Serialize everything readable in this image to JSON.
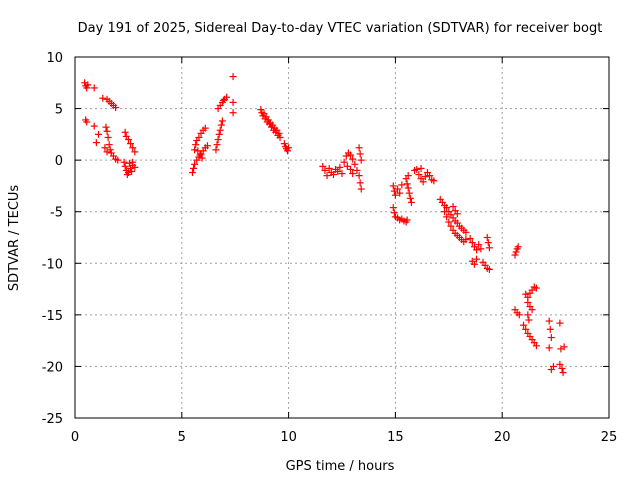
{
  "chart_data": {
    "type": "scatter",
    "title": "Day 191 of 2025, Sidereal Day-to-day VTEC variation (SDTVAR) for receiver bogt",
    "xlabel": "GPS time / hours",
    "ylabel": "SDTVAR / TECUs",
    "xlim": [
      0,
      25
    ],
    "ylim": [
      -25,
      10
    ],
    "xticks": [
      0,
      5,
      10,
      15,
      20,
      25
    ],
    "yticks": [
      -25,
      -20,
      -15,
      -10,
      -5,
      0,
      5,
      10
    ],
    "grid": true,
    "marker": "plus",
    "color": "#ff0000",
    "points": [
      [
        0.45,
        7.5
      ],
      [
        0.5,
        7.2
      ],
      [
        0.55,
        7.0
      ],
      [
        0.6,
        7.3
      ],
      [
        0.5,
        3.9
      ],
      [
        0.55,
        3.7
      ],
      [
        0.9,
        7.0
      ],
      [
        0.9,
        3.3
      ],
      [
        1.0,
        1.7
      ],
      [
        1.1,
        2.5
      ],
      [
        1.3,
        6.0
      ],
      [
        1.5,
        5.9
      ],
      [
        1.6,
        5.7
      ],
      [
        1.7,
        5.5
      ],
      [
        1.8,
        5.3
      ],
      [
        1.9,
        5.1
      ],
      [
        1.45,
        3.2
      ],
      [
        1.5,
        2.8
      ],
      [
        1.55,
        2.2
      ],
      [
        1.6,
        1.5
      ],
      [
        1.65,
        1.0
      ],
      [
        1.7,
        0.7
      ],
      [
        1.8,
        0.4
      ],
      [
        1.9,
        0.1
      ],
      [
        2.0,
        0.0
      ],
      [
        1.4,
        1.2
      ],
      [
        1.5,
        0.8
      ],
      [
        2.3,
        -0.2
      ],
      [
        2.35,
        -0.6
      ],
      [
        2.4,
        -1.0
      ],
      [
        2.45,
        -1.4
      ],
      [
        2.5,
        -1.2
      ],
      [
        2.6,
        -0.8
      ],
      [
        2.7,
        -0.5
      ],
      [
        2.8,
        -0.7
      ],
      [
        2.55,
        -0.3
      ],
      [
        2.65,
        -1.1
      ],
      [
        2.7,
        -0.2
      ],
      [
        2.35,
        2.7
      ],
      [
        2.4,
        2.3
      ],
      [
        2.5,
        2.0
      ],
      [
        2.6,
        1.6
      ],
      [
        2.7,
        1.2
      ],
      [
        2.8,
        0.8
      ],
      [
        5.5,
        -1.2
      ],
      [
        5.55,
        -0.8
      ],
      [
        5.6,
        -0.4
      ],
      [
        5.7,
        0.0
      ],
      [
        5.8,
        0.3
      ],
      [
        5.9,
        0.6
      ],
      [
        6.0,
        0.9
      ],
      [
        6.1,
        1.2
      ],
      [
        6.2,
        1.4
      ],
      [
        5.6,
        1.0
      ],
      [
        5.65,
        1.5
      ],
      [
        5.7,
        1.9
      ],
      [
        5.8,
        2.2
      ],
      [
        5.9,
        2.6
      ],
      [
        6.0,
        2.9
      ],
      [
        6.1,
        3.1
      ],
      [
        5.75,
        0.9
      ],
      [
        5.85,
        0.5
      ],
      [
        5.95,
        0.2
      ],
      [
        6.6,
        1.0
      ],
      [
        6.65,
        1.5
      ],
      [
        6.7,
        2.0
      ],
      [
        6.75,
        2.5
      ],
      [
        6.8,
        2.9
      ],
      [
        6.85,
        3.4
      ],
      [
        6.9,
        3.8
      ],
      [
        6.7,
        5.0
      ],
      [
        6.8,
        5.3
      ],
      [
        6.9,
        5.6
      ],
      [
        7.0,
        5.9
      ],
      [
        7.1,
        6.1
      ],
      [
        6.95,
        5.8
      ],
      [
        7.4,
        8.1
      ],
      [
        7.4,
        5.6
      ],
      [
        7.4,
        4.6
      ],
      [
        8.7,
        4.9
      ],
      [
        8.75,
        4.6
      ],
      [
        8.8,
        4.3
      ],
      [
        8.9,
        4.0
      ],
      [
        9.0,
        3.7
      ],
      [
        9.1,
        3.5
      ],
      [
        9.2,
        3.2
      ],
      [
        9.3,
        2.9
      ],
      [
        9.4,
        2.7
      ],
      [
        9.5,
        2.4
      ],
      [
        9.6,
        2.2
      ],
      [
        8.85,
        4.5
      ],
      [
        8.95,
        4.2
      ],
      [
        9.05,
        3.9
      ],
      [
        9.15,
        3.6
      ],
      [
        9.25,
        3.4
      ],
      [
        9.35,
        3.1
      ],
      [
        9.45,
        2.9
      ],
      [
        9.55,
        2.6
      ],
      [
        9.8,
        1.6
      ],
      [
        9.85,
        1.3
      ],
      [
        9.9,
        1.1
      ],
      [
        9.95,
        0.9
      ],
      [
        10.0,
        1.2
      ],
      [
        11.6,
        -0.6
      ],
      [
        11.7,
        -1.0
      ],
      [
        11.8,
        -1.5
      ],
      [
        11.9,
        -0.8
      ],
      [
        12.0,
        -1.2
      ],
      [
        12.1,
        -1.4
      ],
      [
        12.2,
        -0.9
      ],
      [
        12.3,
        -1.1
      ],
      [
        12.4,
        -0.7
      ],
      [
        12.5,
        -1.3
      ],
      [
        12.6,
        -0.2
      ],
      [
        12.7,
        0.4
      ],
      [
        12.8,
        0.7
      ],
      [
        12.9,
        0.5
      ],
      [
        13.0,
        0.1
      ],
      [
        13.1,
        -0.4
      ],
      [
        13.2,
        -1.0
      ],
      [
        12.75,
        -0.6
      ],
      [
        13.3,
        1.2
      ],
      [
        13.35,
        0.6
      ],
      [
        13.4,
        0.0
      ],
      [
        13.3,
        -1.5
      ],
      [
        13.35,
        -2.2
      ],
      [
        13.4,
        -2.8
      ],
      [
        12.9,
        -0.9
      ],
      [
        13.0,
        -1.3
      ],
      [
        14.9,
        -2.5
      ],
      [
        14.95,
        -3.0
      ],
      [
        15.0,
        -3.4
      ],
      [
        15.1,
        -2.8
      ],
      [
        15.2,
        -3.2
      ],
      [
        15.3,
        -2.4
      ],
      [
        14.9,
        -4.6
      ],
      [
        14.95,
        -5.1
      ],
      [
        15.0,
        -5.5
      ],
      [
        15.1,
        -5.6
      ],
      [
        15.2,
        -5.8
      ],
      [
        15.3,
        -5.7
      ],
      [
        15.4,
        -5.9
      ],
      [
        15.5,
        -6.0
      ],
      [
        15.55,
        -5.8
      ],
      [
        15.5,
        -1.8
      ],
      [
        15.55,
        -2.3
      ],
      [
        15.6,
        -2.7
      ],
      [
        15.65,
        -3.2
      ],
      [
        15.7,
        -3.7
      ],
      [
        15.75,
        -4.1
      ],
      [
        15.6,
        -1.5
      ],
      [
        15.9,
        -1.0
      ],
      [
        16.0,
        -0.9
      ],
      [
        16.1,
        -1.4
      ],
      [
        16.2,
        -1.8
      ],
      [
        16.3,
        -2.1
      ],
      [
        16.4,
        -1.6
      ],
      [
        16.5,
        -1.2
      ],
      [
        16.6,
        -1.5
      ],
      [
        16.7,
        -1.9
      ],
      [
        16.8,
        -2.0
      ],
      [
        16.2,
        -0.8
      ],
      [
        17.1,
        -3.8
      ],
      [
        17.2,
        -4.1
      ],
      [
        17.3,
        -4.4
      ],
      [
        17.4,
        -4.6
      ],
      [
        17.5,
        -5.0
      ],
      [
        17.6,
        -5.3
      ],
      [
        17.7,
        -5.6
      ],
      [
        17.8,
        -5.9
      ],
      [
        17.9,
        -6.1
      ],
      [
        18.0,
        -6.4
      ],
      [
        17.3,
        -5.0
      ],
      [
        17.4,
        -5.5
      ],
      [
        17.5,
        -6.0
      ],
      [
        17.6,
        -6.4
      ],
      [
        17.7,
        -6.8
      ],
      [
        17.8,
        -7.1
      ],
      [
        17.9,
        -7.3
      ],
      [
        18.0,
        -7.5
      ],
      [
        18.1,
        -7.7
      ],
      [
        18.2,
        -7.9
      ],
      [
        18.3,
        -7.7
      ],
      [
        18.1,
        -6.6
      ],
      [
        18.2,
        -6.8
      ],
      [
        18.3,
        -7.0
      ],
      [
        17.7,
        -4.5
      ],
      [
        17.8,
        -4.9
      ],
      [
        17.9,
        -5.2
      ],
      [
        18.5,
        -7.6
      ],
      [
        18.6,
        -8.0
      ],
      [
        18.7,
        -8.4
      ],
      [
        18.8,
        -8.7
      ],
      [
        18.6,
        -9.8
      ],
      [
        18.7,
        -10.1
      ],
      [
        18.8,
        -9.6
      ],
      [
        18.9,
        -8.2
      ],
      [
        19.0,
        -8.6
      ],
      [
        19.1,
        -9.9
      ],
      [
        19.2,
        -10.2
      ],
      [
        19.3,
        -10.5
      ],
      [
        19.4,
        -10.6
      ],
      [
        19.3,
        -7.5
      ],
      [
        19.35,
        -8.0
      ],
      [
        19.4,
        -8.5
      ],
      [
        20.6,
        -9.2
      ],
      [
        20.65,
        -8.9
      ],
      [
        20.7,
        -8.6
      ],
      [
        20.75,
        -8.4
      ],
      [
        20.6,
        -14.5
      ],
      [
        20.7,
        -14.8
      ],
      [
        20.8,
        -15.0
      ],
      [
        21.0,
        -16.0
      ],
      [
        21.1,
        -16.4
      ],
      [
        21.2,
        -16.8
      ],
      [
        21.3,
        -17.1
      ],
      [
        21.4,
        -17.4
      ],
      [
        21.5,
        -17.7
      ],
      [
        21.6,
        -18.0
      ],
      [
        21.1,
        -13.0
      ],
      [
        21.2,
        -13.3
      ],
      [
        21.3,
        -12.9
      ],
      [
        21.4,
        -12.6
      ],
      [
        21.5,
        -12.3
      ],
      [
        21.6,
        -12.4
      ],
      [
        21.2,
        -13.8
      ],
      [
        21.3,
        -14.2
      ],
      [
        21.4,
        -14.5
      ],
      [
        21.2,
        -15.0
      ],
      [
        21.25,
        -15.5
      ],
      [
        22.2,
        -15.6
      ],
      [
        22.25,
        -16.4
      ],
      [
        22.3,
        -17.2
      ],
      [
        22.2,
        -18.2
      ],
      [
        22.3,
        -20.3
      ],
      [
        22.4,
        -20.0
      ],
      [
        22.7,
        -15.8
      ],
      [
        22.75,
        -18.3
      ],
      [
        22.8,
        -20.2
      ],
      [
        22.85,
        -20.6
      ],
      [
        22.7,
        -19.8
      ],
      [
        22.9,
        -18.1
      ]
    ]
  }
}
